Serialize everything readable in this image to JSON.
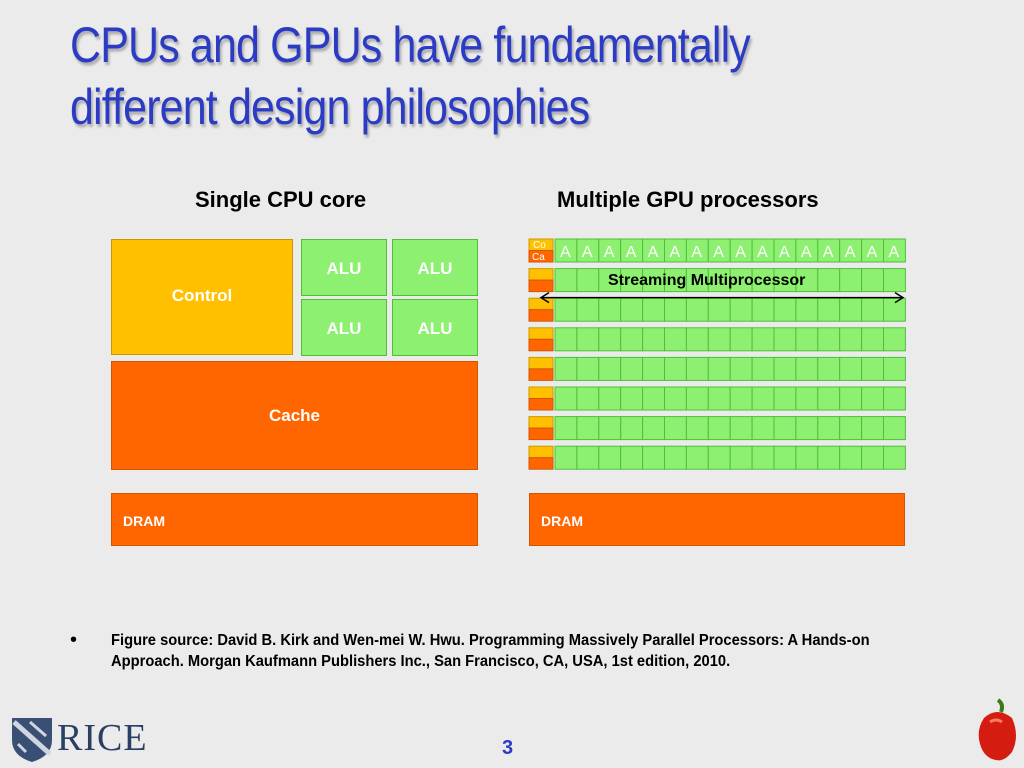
{
  "slide": {
    "title": "CPUs and GPUs have fundamentally different design philosophies",
    "page_number": "3"
  },
  "cpu": {
    "heading": "Single CPU core",
    "control_label": "Control",
    "alu_labels": [
      "ALU",
      "ALU",
      "ALU",
      "ALU"
    ],
    "cache_label": "Cache",
    "dram_label": "DRAM"
  },
  "gpu": {
    "heading": "Multiple GPU processors",
    "control_cache_labels": [
      "Co",
      "Ca"
    ],
    "alu_abbrev": "A",
    "alus_per_row": 16,
    "rows": 8,
    "streaming_multiprocessor_label": "Streaming Multiprocessor",
    "dram_label": "DRAM"
  },
  "footer": {
    "bullet_symbol": "•",
    "figure_source": "Figure source: David B. Kirk and Wen-mei W. Hwu. Programming Massively Parallel Processors: A Hands-on Approach. Morgan Kaufmann Publishers Inc., San Francisco, CA, USA, 1st edition, 2010.",
    "logo_text": "RICE"
  },
  "colors": {
    "title": "#2b3bc4",
    "control": "#ffc000",
    "alu": "#8ef070",
    "cache_dram": "#ff6600",
    "background": "#ebebeb"
  }
}
